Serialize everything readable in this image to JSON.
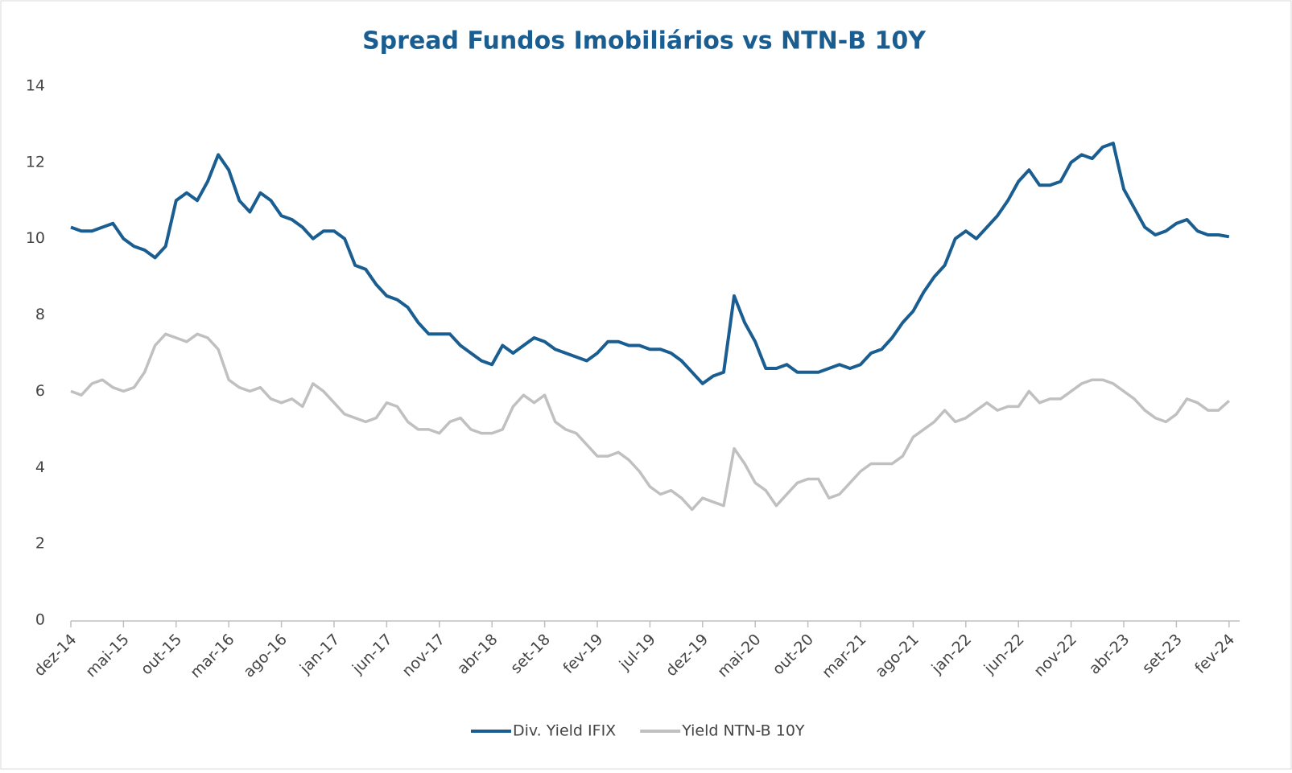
{
  "chart_data": {
    "type": "line",
    "title": "Spread Fundos Imobiliários vs NTN-B 10Y",
    "categories": [
      "dez-14",
      null,
      null,
      null,
      null,
      "mai-15",
      null,
      null,
      null,
      null,
      "out-15",
      null,
      null,
      null,
      null,
      "mar-16",
      null,
      null,
      null,
      null,
      "ago-16",
      null,
      null,
      null,
      null,
      "jan-17",
      null,
      null,
      null,
      null,
      "jun-17",
      null,
      null,
      null,
      null,
      "nov-17",
      null,
      null,
      null,
      null,
      "abr-18",
      null,
      null,
      null,
      null,
      "set-18",
      null,
      null,
      null,
      null,
      "fev-19",
      null,
      null,
      null,
      null,
      "jul-19",
      null,
      null,
      null,
      null,
      "dez-19",
      null,
      null,
      null,
      null,
      "mai-20",
      null,
      null,
      null,
      null,
      "out-20",
      null,
      null,
      null,
      null,
      "mar-21",
      null,
      null,
      null,
      null,
      "ago-21",
      null,
      null,
      null,
      null,
      "jan-22",
      null,
      null,
      null,
      null,
      "jun-22",
      null,
      null,
      null,
      null,
      "nov-22",
      null,
      null,
      null,
      null,
      "abr-23",
      null,
      null,
      null,
      null,
      "set-23",
      null,
      null,
      null,
      null,
      "fev-24"
    ],
    "series": [
      {
        "name": "Div. Yield IFIX",
        "color": "#1a5e91",
        "values": [
          10.3,
          10.2,
          10.2,
          10.3,
          10.4,
          10.0,
          9.8,
          9.7,
          9.5,
          9.8,
          11.0,
          11.2,
          11.0,
          11.5,
          12.2,
          11.8,
          11.0,
          10.7,
          11.2,
          11.0,
          10.6,
          10.5,
          10.3,
          10.0,
          10.2,
          10.2,
          10.0,
          9.3,
          9.2,
          8.8,
          8.5,
          8.4,
          8.2,
          7.8,
          7.5,
          7.5,
          7.5,
          7.2,
          7.0,
          6.8,
          6.7,
          7.2,
          7.0,
          7.2,
          7.4,
          7.3,
          7.1,
          7.0,
          6.9,
          6.8,
          7.0,
          7.3,
          7.3,
          7.2,
          7.2,
          7.1,
          7.1,
          7.0,
          6.8,
          6.5,
          6.2,
          6.4,
          6.5,
          8.5,
          7.8,
          7.3,
          6.6,
          6.6,
          6.7,
          6.5,
          6.5,
          6.5,
          6.6,
          6.7,
          6.6,
          6.7,
          7.0,
          7.1,
          7.4,
          7.8,
          8.1,
          8.6,
          9.0,
          9.3,
          10.0,
          10.2,
          10.0,
          10.3,
          10.6,
          11.0,
          11.5,
          11.8,
          11.4,
          11.4,
          11.5,
          12.0,
          12.2,
          12.1,
          12.4,
          12.5,
          11.3,
          10.8,
          10.3,
          10.1,
          10.2,
          10.4,
          10.5,
          10.2,
          10.1,
          10.1,
          10.05
        ]
      },
      {
        "name": "Yield NTN-B 10Y",
        "color": "#c0c0c0",
        "values": [
          6.0,
          5.9,
          6.2,
          6.3,
          6.1,
          6.0,
          6.1,
          6.5,
          7.2,
          7.5,
          7.4,
          7.3,
          7.5,
          7.4,
          7.1,
          6.3,
          6.1,
          6.0,
          6.1,
          5.8,
          5.7,
          5.8,
          5.6,
          6.2,
          6.0,
          5.7,
          5.4,
          5.3,
          5.2,
          5.3,
          5.7,
          5.6,
          5.2,
          5.0,
          5.0,
          4.9,
          5.2,
          5.3,
          5.0,
          4.9,
          4.9,
          5.0,
          5.6,
          5.9,
          5.7,
          5.9,
          5.2,
          5.0,
          4.9,
          4.6,
          4.3,
          4.3,
          4.4,
          4.2,
          3.9,
          3.5,
          3.3,
          3.4,
          3.2,
          2.9,
          3.2,
          3.1,
          3.0,
          4.5,
          4.1,
          3.6,
          3.4,
          3.0,
          3.3,
          3.6,
          3.7,
          3.7,
          3.2,
          3.3,
          3.6,
          3.9,
          4.1,
          4.1,
          4.1,
          4.3,
          4.8,
          5.0,
          5.2,
          5.5,
          5.2,
          5.3,
          5.5,
          5.7,
          5.5,
          5.6,
          5.6,
          6.0,
          5.7,
          5.8,
          5.8,
          6.0,
          6.2,
          6.3,
          6.3,
          6.2,
          6.0,
          5.8,
          5.5,
          5.3,
          5.2,
          5.4,
          5.8,
          5.7,
          5.5,
          5.5,
          5.75
        ]
      }
    ],
    "ylim": [
      0,
      14
    ],
    "yticks": [
      0,
      2,
      4,
      6,
      8,
      10,
      12,
      14
    ],
    "grid": false,
    "legend": "bottom"
  }
}
